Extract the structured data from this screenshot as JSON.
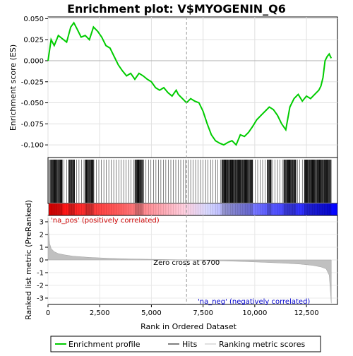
{
  "chart_data": {
    "type": "line",
    "title": "Enrichment plot: V$MYOGENIN_Q6",
    "top_panel": {
      "ylabel": "Enrichment score (ES)",
      "ylim": [
        -0.115,
        0.052
      ],
      "yticks": [
        0.05,
        0.025,
        0.0,
        -0.025,
        -0.05,
        -0.075,
        -0.1
      ],
      "ytick_labels": [
        "0.050",
        "0.025",
        "0.000",
        "-0.025",
        "-0.050",
        "-0.075",
        "-0.100"
      ],
      "series": [
        {
          "name": "Enrichment profile",
          "color": "#00cc00",
          "x": [
            0,
            150,
            300,
            500,
            700,
            900,
            1100,
            1250,
            1400,
            1600,
            1800,
            2000,
            2200,
            2400,
            2600,
            2800,
            3000,
            3200,
            3400,
            3600,
            3800,
            4000,
            4200,
            4400,
            4600,
            4800,
            5000,
            5200,
            5400,
            5600,
            5800,
            6000,
            6200,
            6300,
            6500,
            6700,
            6900,
            7100,
            7300,
            7500,
            7700,
            7900,
            8100,
            8300,
            8500,
            8700,
            8900,
            9100,
            9300,
            9500,
            9700,
            9900,
            10100,
            10300,
            10500,
            10700,
            10900,
            11100,
            11300,
            11500,
            11700,
            11900,
            12100,
            12300,
            12500,
            12700,
            12900,
            13100,
            13200,
            13300,
            13400,
            13500,
            13600,
            13700
          ],
          "y": [
            0.0,
            0.025,
            0.018,
            0.03,
            0.026,
            0.022,
            0.04,
            0.045,
            0.038,
            0.028,
            0.03,
            0.025,
            0.04,
            0.035,
            0.028,
            0.018,
            0.015,
            0.005,
            -0.005,
            -0.012,
            -0.018,
            -0.015,
            -0.022,
            -0.015,
            -0.018,
            -0.022,
            -0.025,
            -0.032,
            -0.035,
            -0.032,
            -0.038,
            -0.042,
            -0.035,
            -0.04,
            -0.045,
            -0.05,
            -0.045,
            -0.048,
            -0.05,
            -0.06,
            -0.075,
            -0.088,
            -0.095,
            -0.098,
            -0.1,
            -0.097,
            -0.095,
            -0.1,
            -0.088,
            -0.09,
            -0.085,
            -0.078,
            -0.07,
            -0.065,
            -0.06,
            -0.055,
            -0.058,
            -0.065,
            -0.075,
            -0.082,
            -0.055,
            -0.045,
            -0.04,
            -0.048,
            -0.042,
            -0.045,
            -0.04,
            -0.035,
            -0.03,
            -0.02,
            0.0,
            0.005,
            0.008,
            0.003
          ]
        }
      ],
      "legend": [
        {
          "label": "Enrichment profile",
          "color": "#00cc00"
        },
        {
          "label": "Hits",
          "color": "#000000"
        },
        {
          "label": "Ranking metric scores",
          "color": "#c0c0c0"
        }
      ]
    },
    "hits": {
      "dense_ranges": [
        [
          100,
          700
        ],
        [
          1000,
          1300
        ],
        [
          1800,
          2200
        ],
        [
          4200,
          4600
        ],
        [
          8400,
          9900
        ],
        [
          10600,
          10800
        ],
        [
          11400,
          12000
        ],
        [
          12400,
          13700
        ]
      ],
      "sparse_step": 120
    },
    "bottom_panel": {
      "ylabel": "Ranked list metric (PreRanked)",
      "xlabel": "Rank in Ordered Dataset",
      "xlim": [
        0,
        14000
      ],
      "ylim": [
        -3.5,
        3.5
      ],
      "xticks": [
        0,
        2500,
        5000,
        7500,
        10000,
        12500
      ],
      "xtick_labels": [
        "0",
        "2,500",
        "5,000",
        "7,500",
        "10,000",
        "12,500"
      ],
      "yticks": [
        3,
        2,
        1,
        0,
        -1,
        -2,
        -3
      ],
      "ytick_labels": [
        "3",
        "2",
        "1",
        "0",
        "-1",
        "-2",
        "-3"
      ],
      "metric_curve": {
        "x": [
          0,
          30,
          80,
          150,
          300,
          500,
          800,
          1200,
          2000,
          3000,
          4000,
          5000,
          6000,
          6700,
          7500,
          8500,
          9500,
          10500,
          11500,
          12200,
          12800,
          13200,
          13450,
          13600,
          13700
        ],
        "y": [
          3.3,
          2.2,
          1.3,
          0.9,
          0.65,
          0.5,
          0.4,
          0.3,
          0.2,
          0.13,
          0.08,
          0.05,
          0.02,
          0.0,
          -0.04,
          -0.08,
          -0.13,
          -0.19,
          -0.26,
          -0.33,
          -0.43,
          -0.55,
          -0.7,
          -1.2,
          -3.4
        ]
      },
      "zero_cross_label": "Zero cross at 6700",
      "zero_cross_x": 6700,
      "pos_label": "'na_pos' (positively correlated)",
      "neg_label": "'na_neg' (negatively correlated)"
    },
    "colors": {
      "profile": "#00cc00",
      "hits": "#000000",
      "metric": "#c0c0c0",
      "pos_text": "#cc0000",
      "neg_text": "#0000cc",
      "bar_red": "#ff0000",
      "bar_blue": "#0000ff"
    }
  }
}
